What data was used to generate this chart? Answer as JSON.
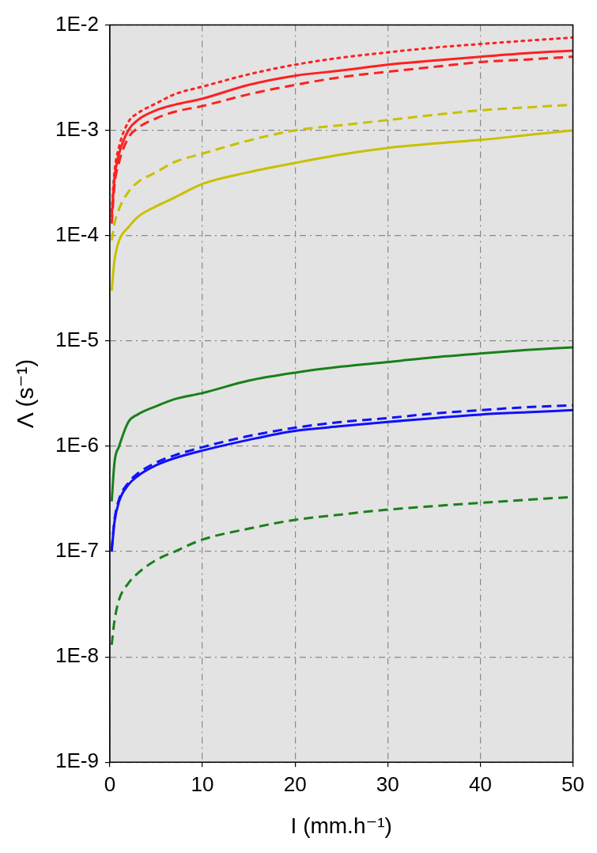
{
  "chart_data": {
    "type": "line",
    "xlabel": "I (mm.h⁻¹)",
    "ylabel": "Λ (s⁻¹)",
    "log": "y",
    "xlim": [
      0,
      50
    ],
    "xticks": [
      0,
      10,
      20,
      30,
      40,
      50
    ],
    "ylim": [
      1e-09,
      0.01
    ],
    "yticks": [
      {
        "value": 1e-09,
        "label": "1E-9"
      },
      {
        "value": 1e-08,
        "label": "1E-8"
      },
      {
        "value": 1e-07,
        "label": "1E-7"
      },
      {
        "value": 1e-06,
        "label": "1E-6"
      },
      {
        "value": 1e-05,
        "label": "1E-5"
      },
      {
        "value": 0.0001,
        "label": "1E-4"
      },
      {
        "value": 0.001,
        "label": "1E-3"
      },
      {
        "value": 0.01,
        "label": "1E-2"
      }
    ],
    "grid": true,
    "legend": false,
    "marker": "none",
    "x": [
      0.2,
      0.5,
      1,
      2,
      3,
      5,
      7,
      10,
      15,
      20,
      25,
      30,
      35,
      40,
      45,
      50
    ],
    "series": [
      {
        "color": "#ff2020",
        "line_style": "dotted",
        "values": [
          0.00017,
          0.0004,
          0.0007,
          0.0012,
          0.00145,
          0.0018,
          0.0022,
          0.0026,
          0.0034,
          0.0042,
          0.0049,
          0.0055,
          0.0061,
          0.0066,
          0.0071,
          0.0076
        ]
      },
      {
        "color": "#ff2020",
        "line_style": "solid",
        "values": [
          0.00015,
          0.00035,
          0.0006,
          0.001,
          0.00125,
          0.00155,
          0.00175,
          0.002,
          0.0027,
          0.0033,
          0.0037,
          0.0042,
          0.0046,
          0.005,
          0.0054,
          0.0057
        ]
      },
      {
        "color": "#ff2020",
        "line_style": "dashed",
        "values": [
          0.00013,
          0.0003,
          0.0005,
          0.00085,
          0.00105,
          0.0013,
          0.0015,
          0.0017,
          0.0022,
          0.0027,
          0.0032,
          0.0036,
          0.004,
          0.00445,
          0.0047,
          0.005
        ]
      },
      {
        "color": "#c8c000",
        "line_style": "dashed",
        "values": [
          9e-05,
          0.00013,
          0.00018,
          0.00026,
          0.00032,
          0.0004,
          0.0005,
          0.0006,
          0.0008,
          0.001,
          0.00112,
          0.00125,
          0.0014,
          0.00155,
          0.00165,
          0.00175
        ]
      },
      {
        "color": "#c8c000",
        "line_style": "solid",
        "values": [
          3e-05,
          5.8e-05,
          9e-05,
          0.00012,
          0.00015,
          0.00019,
          0.00023,
          0.00031,
          0.0004,
          0.00049,
          0.00059,
          0.00068,
          0.00075,
          0.00081,
          0.0009,
          0.001
        ]
      },
      {
        "color": "#1a801a",
        "line_style": "solid",
        "values": [
          3e-07,
          7e-07,
          1e-06,
          1.7e-06,
          2e-06,
          2.4e-06,
          2.8e-06,
          3.2e-06,
          4.2e-06,
          5e-06,
          5.7e-06,
          6.3e-06,
          7e-06,
          7.6e-06,
          8.2e-06,
          8.7e-06
        ]
      },
      {
        "color": "#1010ff",
        "line_style": "dashed",
        "values": [
          1.05e-07,
          2e-07,
          3.15e-07,
          4.5e-07,
          5.5e-07,
          7e-07,
          8.2e-07,
          9.8e-07,
          1.25e-06,
          1.5e-06,
          1.7e-06,
          1.85e-06,
          2.05e-06,
          2.2e-06,
          2.35e-06,
          2.45e-06
        ]
      },
      {
        "color": "#1010ff",
        "line_style": "solid",
        "values": [
          1e-07,
          1.9e-07,
          3e-07,
          4.3e-07,
          5.2e-07,
          6.6e-07,
          7.7e-07,
          9.1e-07,
          1.15e-06,
          1.4e-06,
          1.55e-06,
          1.7e-06,
          1.85e-06,
          2e-06,
          2.1e-06,
          2.2e-06
        ]
      },
      {
        "color": "#1a801a",
        "line_style": "dashed",
        "values": [
          1.3e-08,
          2.2e-08,
          3.5e-08,
          5e-08,
          6.2e-08,
          8.3e-08,
          1e-07,
          1.3e-07,
          1.65e-07,
          2e-07,
          2.25e-07,
          2.5e-07,
          2.7e-07,
          2.9e-07,
          3.1e-07,
          3.3e-07
        ]
      }
    ]
  }
}
